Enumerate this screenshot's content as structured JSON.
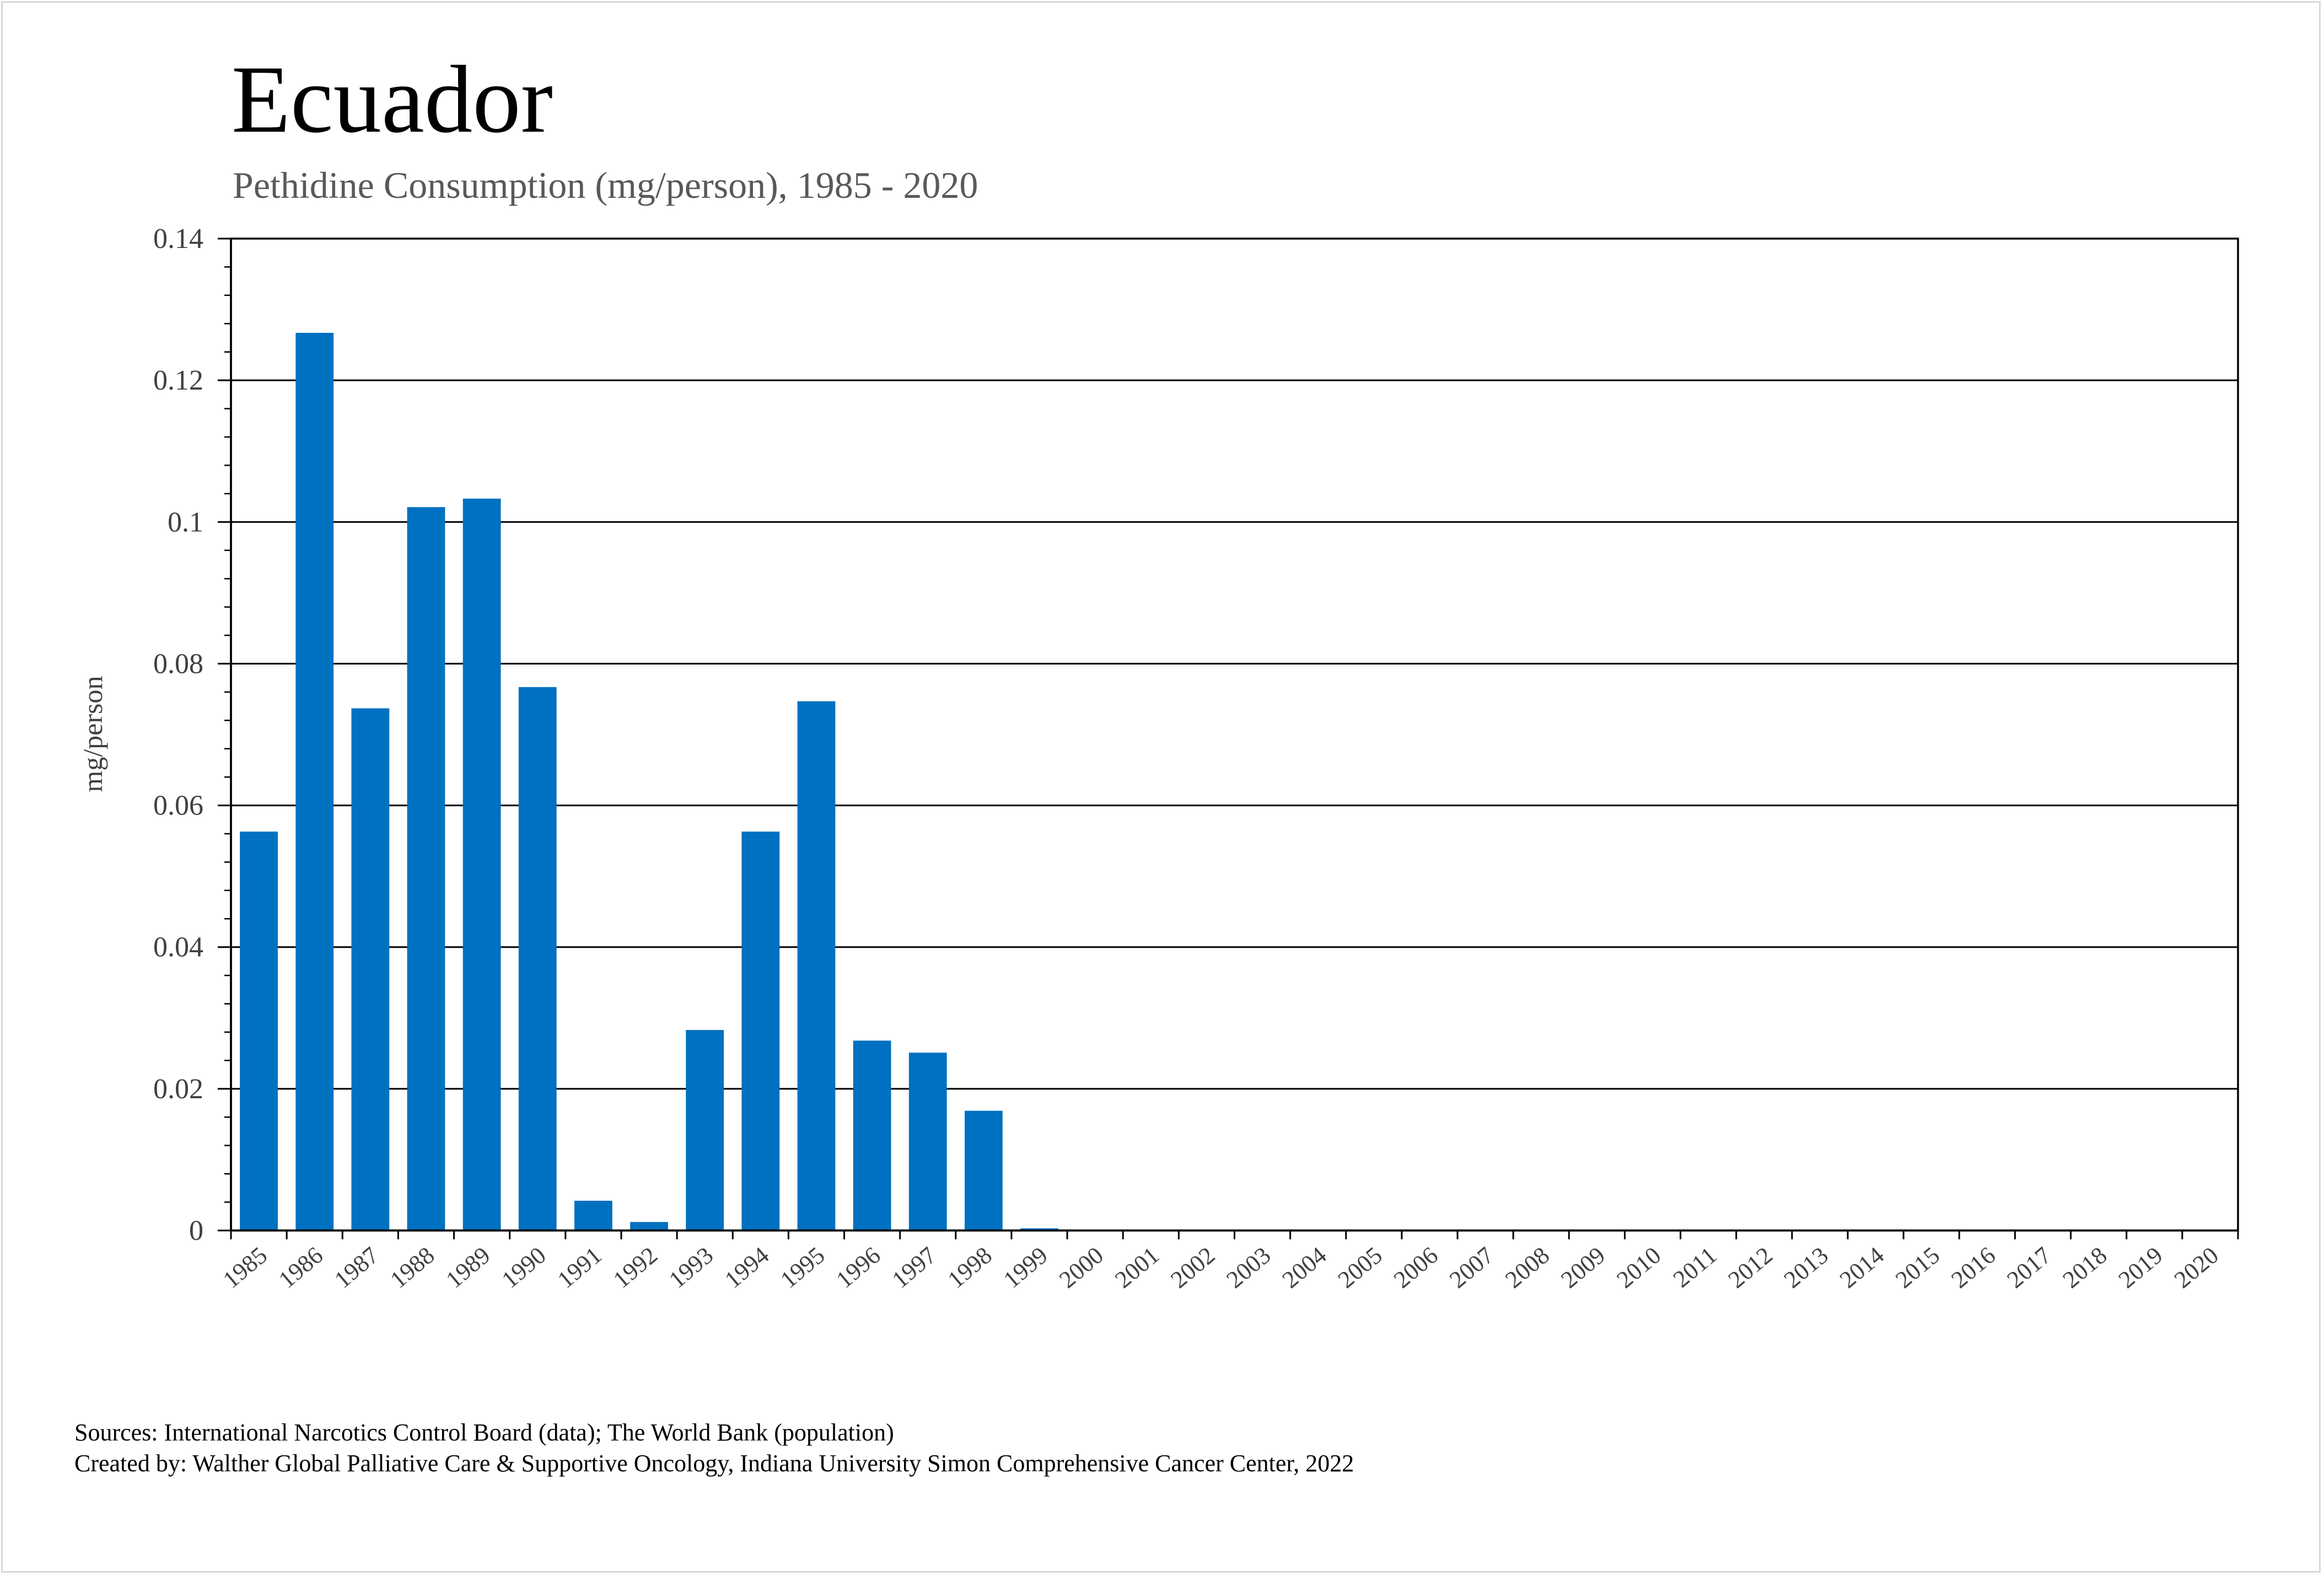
{
  "title": "Ecuador",
  "subtitle": "Pethidine Consumption (mg/person), 1985 - 2020",
  "footer": {
    "sources": "Sources: International Narcotics Control Board (data); The World Bank (population)",
    "created_by": "Created by: Walther Global Palliative Care & Supportive Oncology, Indiana University Simon Comprehensive Cancer Center, 2022"
  },
  "colors": {
    "bar": "#0070c0",
    "gridline": "#000000",
    "tick_text": "#404040"
  },
  "chart_data": {
    "type": "bar",
    "title": "Ecuador",
    "subtitle": "Pethidine Consumption (mg/person), 1985 - 2020",
    "xlabel": "",
    "ylabel": "mg/person",
    "ylim": [
      0,
      0.14
    ],
    "yticks": [
      0,
      0.02,
      0.04,
      0.06,
      0.08,
      0.1,
      0.12,
      0.14
    ],
    "ytick_labels": [
      "0",
      "0.02",
      "0.04",
      "0.06",
      "0.08",
      "0.1",
      "0.12",
      "0.14"
    ],
    "grid": true,
    "legend": "none",
    "categories": [
      "1985",
      "1986",
      "1987",
      "1988",
      "1989",
      "1990",
      "1991",
      "1992",
      "1993",
      "1994",
      "1995",
      "1996",
      "1997",
      "1998",
      "1999",
      "2000",
      "2001",
      "2002",
      "2003",
      "2004",
      "2005",
      "2006",
      "2007",
      "2008",
      "2009",
      "2010",
      "2011",
      "2012",
      "2013",
      "2014",
      "2015",
      "2016",
      "2017",
      "2018",
      "2019",
      "2020"
    ],
    "values": [
      0.0563,
      0.1267,
      0.0737,
      0.1021,
      0.1033,
      0.0767,
      0.0042,
      0.0012,
      0.0283,
      0.0563,
      0.0747,
      0.0268,
      0.0251,
      0.0169,
      0.0003,
      0,
      0,
      0,
      0,
      0,
      0,
      0,
      0,
      0,
      0,
      0,
      0,
      0,
      0,
      0,
      0,
      0,
      0,
      0,
      0,
      0
    ]
  }
}
